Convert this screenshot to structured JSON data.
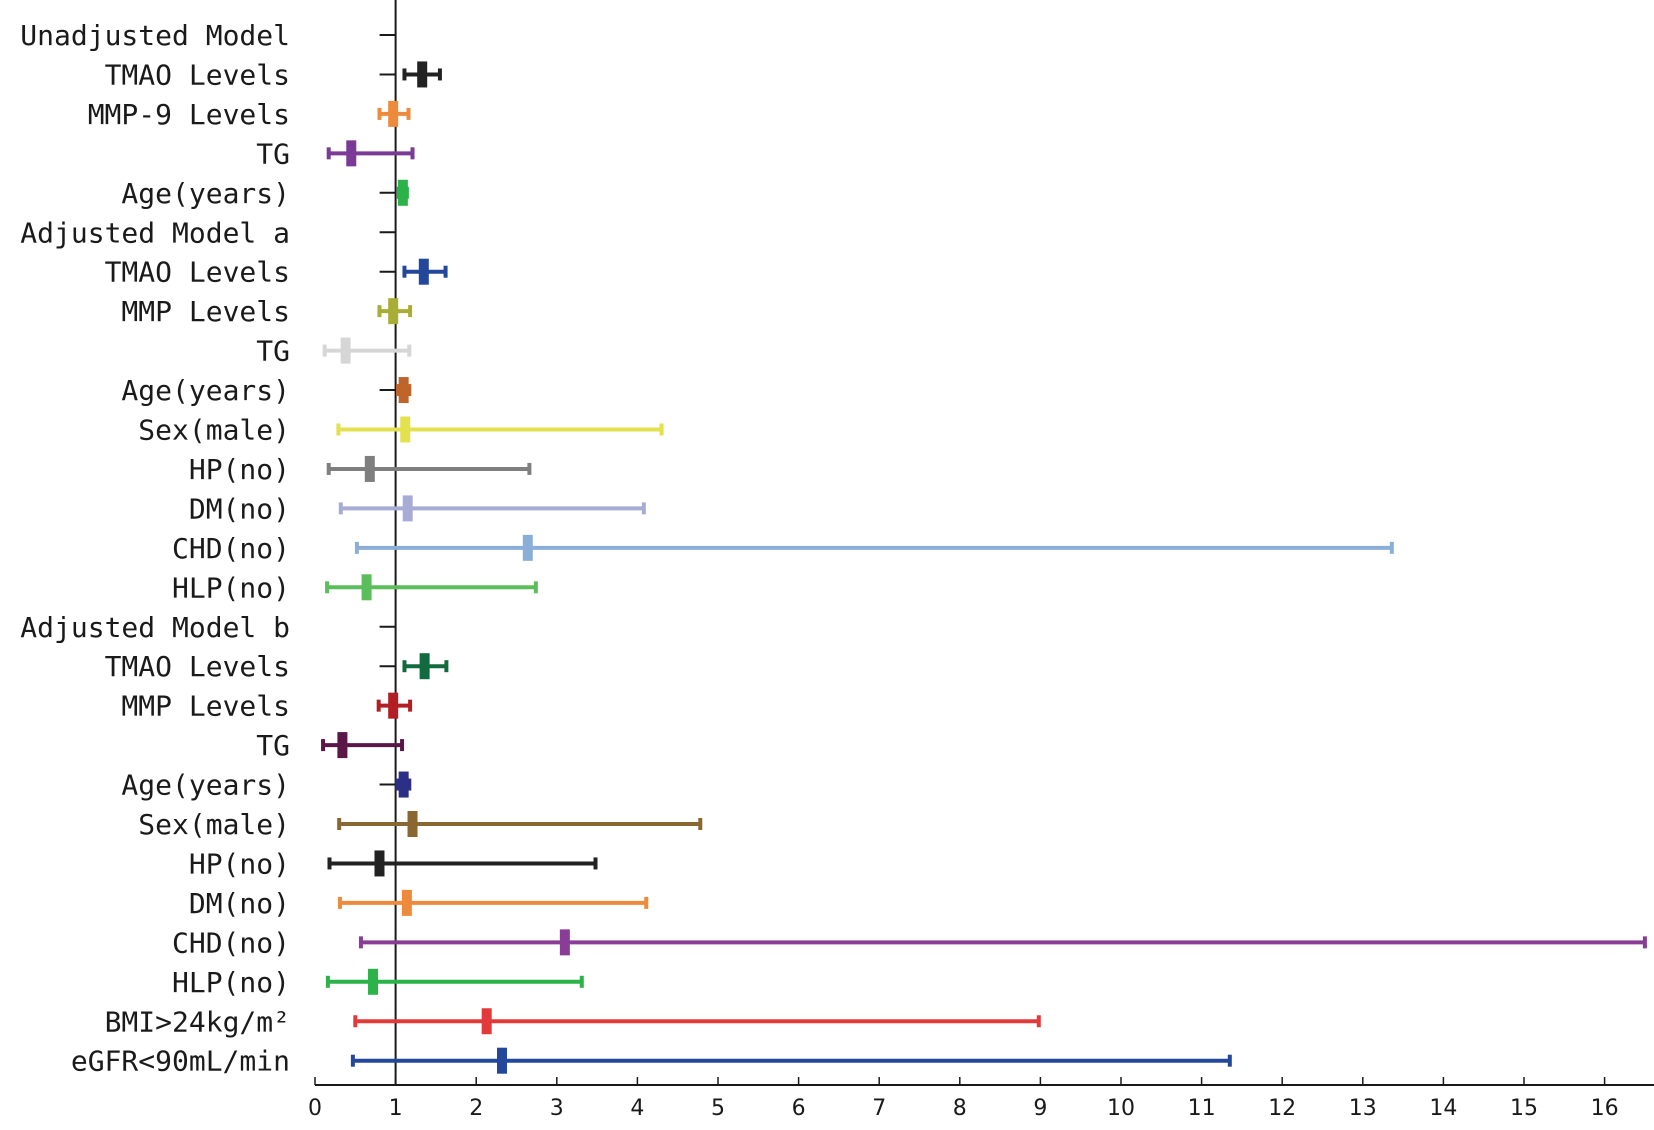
{
  "chart_data": {
    "type": "forest",
    "title": "",
    "xlabel": "",
    "ylabel": "",
    "xlim": [
      0,
      16.5
    ],
    "reference_line": 1,
    "grid": false,
    "x_ticks": [
      "0",
      "1",
      "2",
      "3",
      "4",
      "5",
      "6",
      "7",
      "8",
      "9",
      "10",
      "11",
      "12",
      "13",
      "14",
      "15",
      "16"
    ],
    "rows": [
      {
        "label": "Unadjusted Model",
        "header": true
      },
      {
        "label": "TMAO Levels",
        "or": 1.33,
        "lo": 1.11,
        "hi": 1.55,
        "color": "#222222"
      },
      {
        "label": "MMP-9 Levels",
        "or": 0.97,
        "lo": 0.8,
        "hi": 1.16,
        "color": "#ee8a3c"
      },
      {
        "label": "TG",
        "or": 0.45,
        "lo": 0.17,
        "hi": 1.21,
        "color": "#7b3a96"
      },
      {
        "label": "Age(years)",
        "or": 1.09,
        "lo": 1.04,
        "hi": 1.14,
        "color": "#2bb34a"
      },
      {
        "label": "Adjusted Model a",
        "header": true
      },
      {
        "label": "TMAO Levels",
        "or": 1.35,
        "lo": 1.11,
        "hi": 1.62,
        "color": "#23479b"
      },
      {
        "label": "MMP Levels",
        "or": 0.97,
        "lo": 0.8,
        "hi": 1.18,
        "color": "#a8ad35"
      },
      {
        "label": "TG",
        "or": 0.38,
        "lo": 0.12,
        "hi": 1.17,
        "color": "#d6d6d6"
      },
      {
        "label": "Age(years)",
        "or": 1.1,
        "lo": 1.03,
        "hi": 1.17,
        "color": "#c0652a"
      },
      {
        "label": "Sex(male)",
        "or": 1.12,
        "lo": 0.29,
        "hi": 4.3,
        "color": "#e3e14d"
      },
      {
        "label": "HP(no)",
        "or": 0.68,
        "lo": 0.17,
        "hi": 2.66,
        "color": "#7f7f7f"
      },
      {
        "label": "DM(no)",
        "or": 1.15,
        "lo": 0.32,
        "hi": 4.08,
        "color": "#a7acd6"
      },
      {
        "label": "CHD(no)",
        "or": 2.64,
        "lo": 0.52,
        "hi": 13.36,
        "color": "#8aaed8"
      },
      {
        "label": "HLP(no)",
        "or": 0.64,
        "lo": 0.15,
        "hi": 2.74,
        "color": "#5bbd5b"
      },
      {
        "label": "Adjusted Model b",
        "header": true
      },
      {
        "label": "TMAO Levels",
        "or": 1.36,
        "lo": 1.11,
        "hi": 1.63,
        "color": "#116b3e"
      },
      {
        "label": "MMP Levels",
        "or": 0.97,
        "lo": 0.79,
        "hi": 1.18,
        "color": "#b11f24"
      },
      {
        "label": "TG",
        "or": 0.34,
        "lo": 0.1,
        "hi": 1.08,
        "color": "#5a1647"
      },
      {
        "label": "Age(years)",
        "or": 1.1,
        "lo": 1.02,
        "hi": 1.17,
        "color": "#2c2f86"
      },
      {
        "label": "Sex(male)",
        "or": 1.21,
        "lo": 0.3,
        "hi": 4.78,
        "color": "#8a6730"
      },
      {
        "label": "HP(no)",
        "or": 0.8,
        "lo": 0.18,
        "hi": 3.48,
        "color": "#222222"
      },
      {
        "label": "DM(no)",
        "or": 1.14,
        "lo": 0.31,
        "hi": 4.11,
        "color": "#ee8a3c"
      },
      {
        "label": "CHD(no)",
        "or": 3.1,
        "lo": 0.57,
        "hi": 16.5,
        "color": "#8a3d96"
      },
      {
        "label": "HLP(no)",
        "or": 0.72,
        "lo": 0.16,
        "hi": 3.31,
        "color": "#2bb34a"
      },
      {
        "label": "BMI>24kg/m²",
        "or": 2.13,
        "lo": 0.5,
        "hi": 8.98,
        "color": "#e23a3a"
      },
      {
        "label": "eGFR<90mL/min",
        "or": 2.32,
        "lo": 0.47,
        "hi": 11.35,
        "color": "#23479b"
      }
    ]
  }
}
